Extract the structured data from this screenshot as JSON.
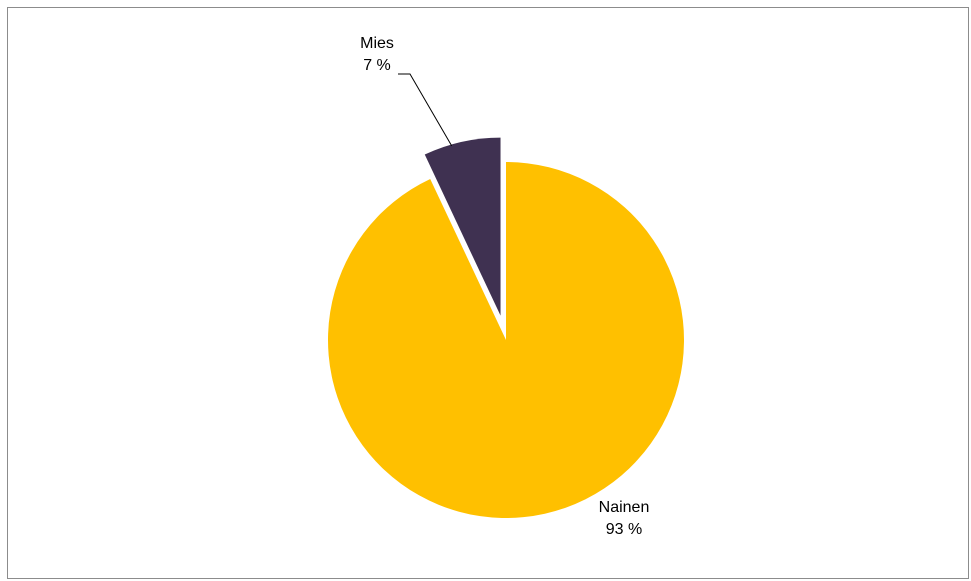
{
  "chart_data": {
    "type": "pie",
    "title": "",
    "slices": [
      {
        "label": "Nainen",
        "value": 93,
        "value_label": "93 %",
        "color": "#FFC000",
        "exploded": false
      },
      {
        "label": "Mies",
        "value": 7,
        "value_label": "7 %",
        "color": "#3F3151",
        "exploded": true
      }
    ],
    "start_angle": "12 o'clock",
    "direction": "clockwise",
    "legend": "none",
    "leader_line_color": "#000000"
  }
}
